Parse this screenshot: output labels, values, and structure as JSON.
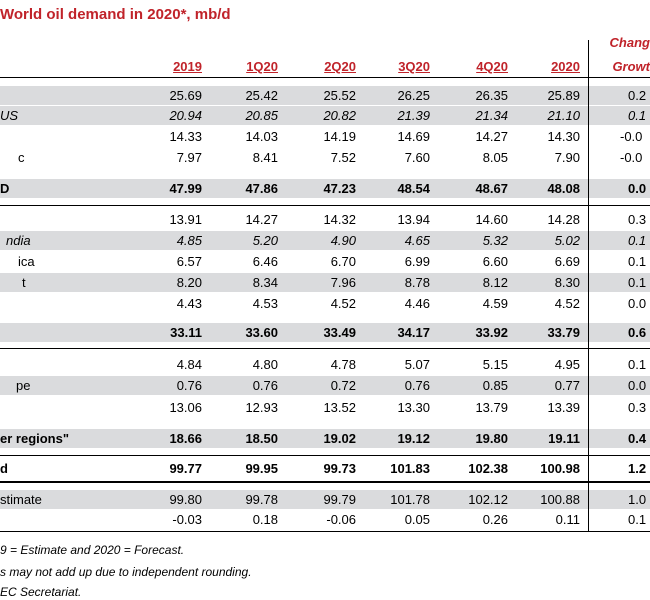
{
  "title": "World oil demand in 2020*, mb/d",
  "change_header": {
    "line1": "Chang",
    "line2": "Growt"
  },
  "columns": [
    "2019",
    "1Q20",
    "2Q20",
    "3Q20",
    "4Q20",
    "2020"
  ],
  "rows": [
    {
      "label": "",
      "values": [
        "25.69",
        "25.42",
        "25.52",
        "26.25",
        "26.35",
        "25.89"
      ],
      "change": "0.2",
      "style": "normal"
    },
    {
      "label": "US",
      "values": [
        "20.94",
        "20.85",
        "20.82",
        "21.39",
        "21.34",
        "21.10"
      ],
      "change": "0.1",
      "style": "italic"
    },
    {
      "label": "",
      "values": [
        "14.33",
        "14.03",
        "14.19",
        "14.69",
        "14.27",
        "14.30"
      ],
      "change": "-0.0",
      "style": "normal"
    },
    {
      "label": "c",
      "values": [
        "7.97",
        "8.41",
        "7.52",
        "7.60",
        "8.05",
        "7.90"
      ],
      "change": "-0.0",
      "style": "normal"
    },
    {
      "label": "D",
      "values": [
        "47.99",
        "47.86",
        "47.23",
        "48.54",
        "48.67",
        "48.08"
      ],
      "change": "0.0",
      "style": "bold"
    },
    {
      "label": "",
      "values": [
        "13.91",
        "14.27",
        "14.32",
        "13.94",
        "14.60",
        "14.28"
      ],
      "change": "0.3",
      "style": "normal"
    },
    {
      "label": "ndia",
      "values": [
        "4.85",
        "5.20",
        "4.90",
        "4.65",
        "5.32",
        "5.02"
      ],
      "change": "0.1",
      "style": "italic"
    },
    {
      "label": "ica",
      "values": [
        "6.57",
        "6.46",
        "6.70",
        "6.99",
        "6.60",
        "6.69"
      ],
      "change": "0.1",
      "style": "normal"
    },
    {
      "label": "t",
      "values": [
        "8.20",
        "8.34",
        "7.96",
        "8.78",
        "8.12",
        "8.30"
      ],
      "change": "0.1",
      "style": "normal"
    },
    {
      "label": "",
      "values": [
        "4.43",
        "4.53",
        "4.52",
        "4.46",
        "4.59",
        "4.52"
      ],
      "change": "0.0",
      "style": "normal"
    },
    {
      "label": "",
      "values": [
        "33.11",
        "33.60",
        "33.49",
        "34.17",
        "33.92",
        "33.79"
      ],
      "change": "0.6",
      "style": "bold"
    },
    {
      "label": "",
      "values": [
        "4.84",
        "4.80",
        "4.78",
        "5.07",
        "5.15",
        "4.95"
      ],
      "change": "0.1",
      "style": "normal"
    },
    {
      "label": "pe",
      "values": [
        "0.76",
        "0.76",
        "0.72",
        "0.76",
        "0.85",
        "0.77"
      ],
      "change": "0.0",
      "style": "normal"
    },
    {
      "label": "",
      "values": [
        "13.06",
        "12.93",
        "13.52",
        "13.30",
        "13.79",
        "13.39"
      ],
      "change": "0.3",
      "style": "normal"
    },
    {
      "label": "er regions\"",
      "values": [
        "18.66",
        "18.50",
        "19.02",
        "19.12",
        "19.80",
        "19.11"
      ],
      "change": "0.4",
      "style": "bold"
    },
    {
      "label": "d",
      "values": [
        "99.77",
        "99.95",
        "99.73",
        "101.83",
        "102.38",
        "100.98"
      ],
      "change": "1.2",
      "style": "bold"
    },
    {
      "label": "stimate",
      "values": [
        "99.80",
        "99.78",
        "99.79",
        "101.78",
        "102.12",
        "100.88"
      ],
      "change": "1.0",
      "style": "normal"
    },
    {
      "label": "",
      "values": [
        "-0.03",
        "0.18",
        "-0.06",
        "0.05",
        "0.26",
        "0.11"
      ],
      "change": "0.1",
      "style": "normal"
    }
  ],
  "notes": [
    "9 = Estimate and 2020 = Forecast.",
    "s may not add up due to independent rounding.",
    "EC Secretariat."
  ],
  "colors": {
    "accent": "#c0232a",
    "shade": "#dadbdd"
  }
}
